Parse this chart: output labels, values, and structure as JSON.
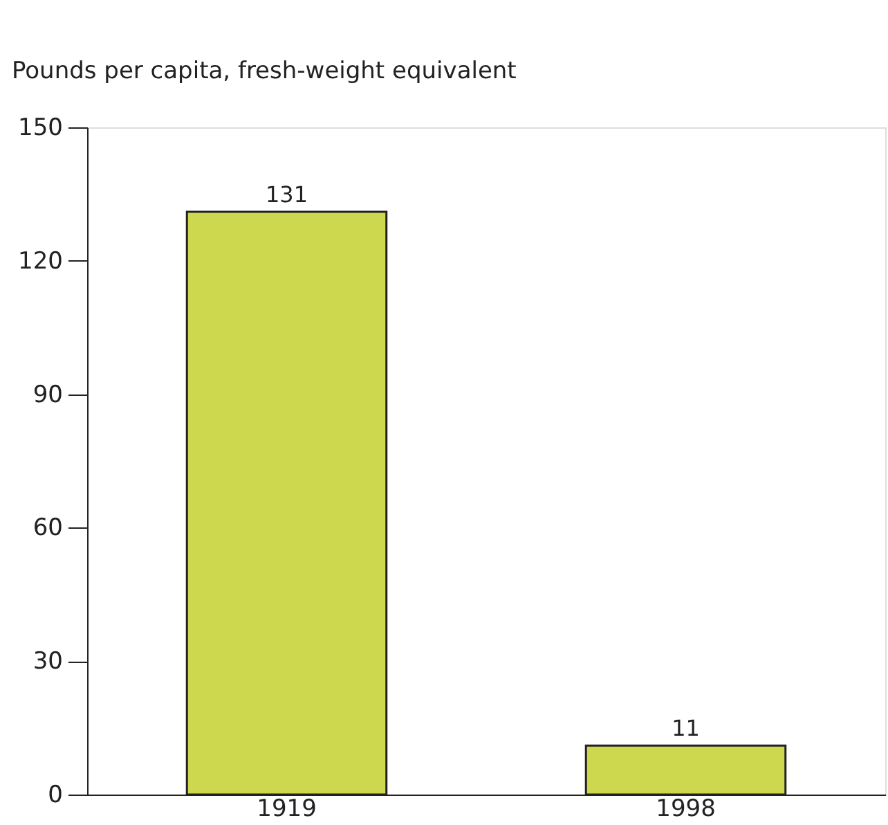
{
  "chart_data": {
    "type": "bar",
    "ylabel": "Pounds per capita, fresh-weight equivalent",
    "categories": [
      "1919",
      "1998"
    ],
    "values": [
      131,
      11
    ],
    "color": "#cdd84e",
    "ylim": [
      0,
      150
    ],
    "yticks": [
      0,
      30,
      60,
      90,
      120,
      150
    ],
    "grid": false,
    "data_labels": true
  }
}
